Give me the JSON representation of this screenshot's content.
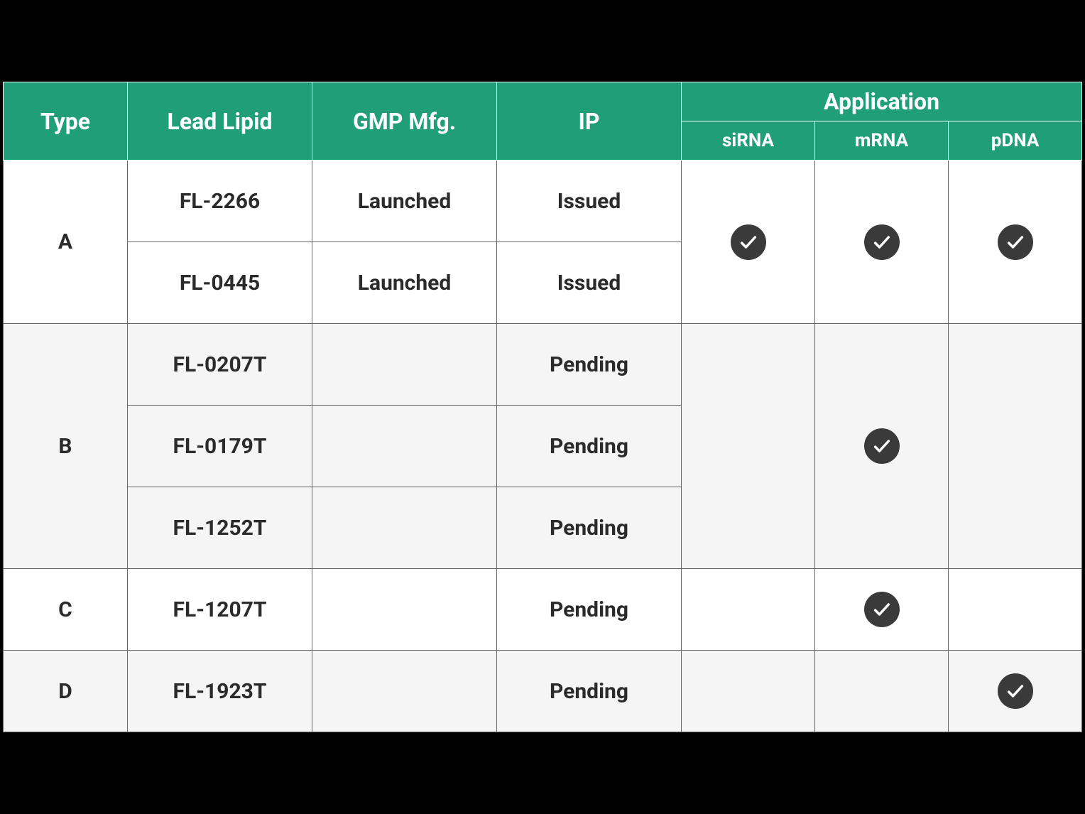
{
  "table": {
    "header_bg": "#1f9e78",
    "header_text_color": "#ffffff",
    "body_text_color": "#2b2b2b",
    "border_color": "#666666",
    "check_bg": "#3a3a3a",
    "check_fg": "#ffffff",
    "columns": {
      "type": {
        "label": "Type"
      },
      "lipid": {
        "label": "Lead Lipid"
      },
      "gmp": {
        "label": "GMP Mfg."
      },
      "ip": {
        "label": "IP"
      },
      "application": {
        "label": "Application",
        "sub": [
          "siRNA",
          "mRNA",
          "pDNA"
        ]
      }
    },
    "groups": [
      {
        "type": "A",
        "bg": "#ffffff",
        "application": {
          "siRNA": true,
          "mRNA": true,
          "pDNA": true
        },
        "rows": [
          {
            "lipid": "FL-2266",
            "gmp": "Launched",
            "ip": "Issued"
          },
          {
            "lipid": "FL-0445",
            "gmp": "Launched",
            "ip": "Issued"
          }
        ]
      },
      {
        "type": "B",
        "bg": "#f5f5f5",
        "application": {
          "siRNA": false,
          "mRNA": true,
          "pDNA": false
        },
        "rows": [
          {
            "lipid": "FL-0207T",
            "gmp": "",
            "ip": "Pending"
          },
          {
            "lipid": "FL-0179T",
            "gmp": "",
            "ip": "Pending"
          },
          {
            "lipid": "FL-1252T",
            "gmp": "",
            "ip": "Pending"
          }
        ]
      },
      {
        "type": "C",
        "bg": "#ffffff",
        "application": {
          "siRNA": false,
          "mRNA": true,
          "pDNA": false
        },
        "rows": [
          {
            "lipid": "FL-1207T",
            "gmp": "",
            "ip": "Pending"
          }
        ]
      },
      {
        "type": "D",
        "bg": "#f5f5f5",
        "application": {
          "siRNA": false,
          "mRNA": false,
          "pDNA": true
        },
        "rows": [
          {
            "lipid": "FL-1923T",
            "gmp": "",
            "ip": "Pending"
          }
        ]
      }
    ]
  }
}
